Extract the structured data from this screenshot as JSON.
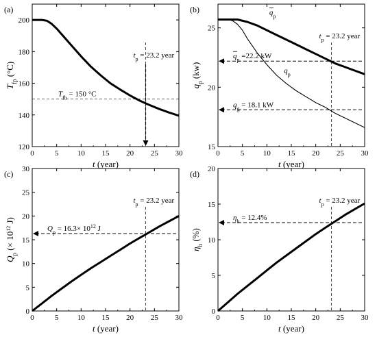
{
  "chart_data": [
    {
      "panel": "(a)",
      "type": "line",
      "xlabel": "t (year)",
      "ylabel": "T_fp (°C)",
      "xlim": [
        0,
        30
      ],
      "ylim": [
        120,
        210
      ],
      "xticks": [
        0,
        5,
        10,
        15,
        20,
        25,
        30
      ],
      "yticks": [
        120,
        140,
        160,
        180,
        200
      ],
      "series": [
        {
          "style": "thick",
          "x": [
            0,
            1,
            2,
            3,
            4,
            5,
            6,
            8,
            10,
            12,
            14,
            16,
            18,
            20,
            22,
            24,
            26,
            28,
            30
          ],
          "y": [
            200,
            200,
            200,
            199.5,
            197.5,
            194.5,
            191,
            184,
            177,
            170.5,
            165,
            160,
            156,
            152.3,
            149,
            146.2,
            143.7,
            141.5,
            139.5
          ]
        }
      ],
      "hline": {
        "y": 150,
        "label_base": "T",
        "label_sub": "fb",
        "label_rest": " = 150 °C"
      },
      "vline": {
        "x": 23.2,
        "label_base": "t",
        "label_sub": "p",
        "label_rest": " = 23.2 year"
      }
    },
    {
      "panel": "(b)",
      "type": "line",
      "xlabel": "t (year)",
      "ylabel": "q_p (kw)",
      "xlim": [
        0,
        30
      ],
      "ylim": [
        15,
        27
      ],
      "xticks": [
        0,
        5,
        10,
        15,
        20,
        25,
        30
      ],
      "yticks": [
        15,
        20,
        25
      ],
      "series": [
        {
          "style": "thick",
          "label_base": "q",
          "label_sub": "p",
          "bar": true,
          "x": [
            0,
            2,
            4,
            6,
            8,
            10,
            12,
            14,
            16,
            18,
            20,
            22,
            24,
            26,
            28,
            30
          ],
          "y": [
            25.7,
            25.7,
            25.7,
            25.5,
            25.2,
            24.8,
            24.4,
            24.0,
            23.6,
            23.2,
            22.8,
            22.4,
            22.0,
            21.7,
            21.4,
            21.1
          ]
        },
        {
          "style": "thin",
          "label_base": "q",
          "label_sub": "p",
          "bar": false,
          "x": [
            0,
            2,
            3,
            4,
            5,
            6,
            8,
            10,
            12,
            14,
            16,
            18,
            20,
            22,
            24,
            26,
            28,
            30
          ],
          "y": [
            25.7,
            25.7,
            25.6,
            25.3,
            24.8,
            24.1,
            22.9,
            21.9,
            21.0,
            20.3,
            19.7,
            19.2,
            18.7,
            18.3,
            17.8,
            17.4,
            17.0,
            16.6
          ]
        }
      ],
      "arrows": [
        {
          "y": 22.2,
          "label_base": "q",
          "label_sub": "p",
          "bar": true,
          "label_rest": " =22.2 kW"
        },
        {
          "y": 18.1,
          "label_base": "q",
          "label_sub": "g",
          "bar": false,
          "label_rest": " = 18.1 kW"
        }
      ],
      "vline": {
        "x": 23.2,
        "label_base": "t",
        "label_sub": "p",
        "label_rest": " = 23.2 year"
      }
    },
    {
      "panel": "(c)",
      "type": "line",
      "xlabel": "t (year)",
      "ylabel": "Q_p (× 10^12 J)",
      "xlim": [
        0,
        30
      ],
      "ylim": [
        0,
        30
      ],
      "xticks": [
        0,
        5,
        10,
        15,
        20,
        25,
        30
      ],
      "yticks": [
        0,
        5,
        10,
        15,
        20,
        25,
        30
      ],
      "series": [
        {
          "style": "thick",
          "x": [
            0,
            2,
            4,
            6,
            8,
            10,
            12,
            14,
            16,
            18,
            20,
            22,
            24,
            26,
            28,
            30
          ],
          "y": [
            0,
            1.6,
            3.2,
            4.7,
            6.2,
            7.6,
            9.0,
            10.3,
            11.6,
            12.9,
            14.2,
            15.4,
            16.6,
            17.8,
            18.9,
            20.0
          ]
        }
      ],
      "arrows": [
        {
          "y": 16.3,
          "label_base": "Q",
          "label_sub": "p",
          "label_rest": " = 16.3× 10",
          "label_sup": "12",
          "label_end": " J"
        }
      ],
      "vline": {
        "x": 23.2,
        "label_base": "t",
        "label_sub": "p",
        "label_rest": " = 23.2 year"
      }
    },
    {
      "panel": "(d)",
      "type": "line",
      "xlabel": "t (year)",
      "ylabel": "η_h (%)",
      "xlim": [
        0,
        30
      ],
      "ylim": [
        0,
        20
      ],
      "xticks": [
        0,
        5,
        10,
        15,
        20,
        25,
        30
      ],
      "yticks": [
        0,
        5,
        10,
        15,
        20
      ],
      "series": [
        {
          "style": "thick",
          "x": [
            0,
            2,
            4,
            6,
            8,
            10,
            12,
            14,
            16,
            18,
            20,
            22,
            24,
            26,
            28,
            30
          ],
          "y": [
            0,
            1.2,
            2.4,
            3.5,
            4.6,
            5.7,
            6.8,
            7.8,
            8.8,
            9.8,
            10.8,
            11.7,
            12.6,
            13.5,
            14.3,
            15.1
          ]
        }
      ],
      "arrows": [
        {
          "y": 12.4,
          "label_base": "η",
          "label_sub": "h",
          "label_rest": " = 12.4%"
        }
      ],
      "vline": {
        "x": 23.2,
        "label_base": "t",
        "label_sub": "p",
        "label_rest": " = 23.2 year"
      }
    }
  ]
}
